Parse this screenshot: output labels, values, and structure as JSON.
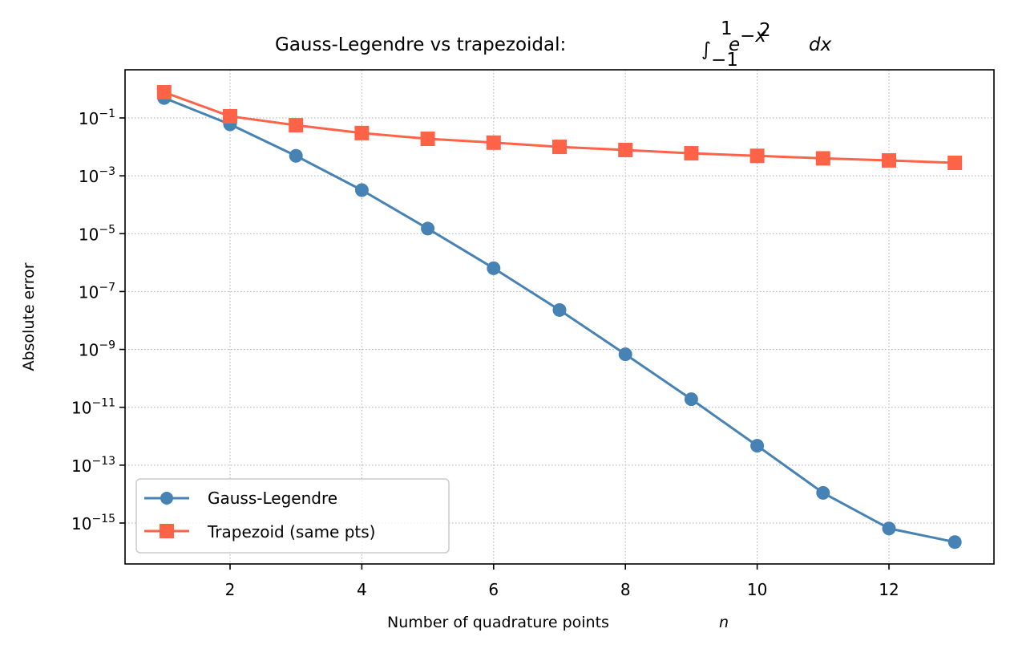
{
  "chart_data": {
    "type": "line",
    "title": "Gauss-Legendre vs trapezoidal: ∫₋₁¹ e^(−x²) dx",
    "title_parts": {
      "text": "Gauss-Legendre vs trapezoidal: ",
      "integral": "∫",
      "upper": "1",
      "lower": "−1",
      "base": "e",
      "exponent": "−x",
      "exponent_power": "2",
      "differential": "dx"
    },
    "xlabel": "Number of quadrature points",
    "xlabel_var": "n",
    "ylabel": "Absolute error",
    "yscale": "log",
    "xlim": [
      0.4,
      13.6
    ],
    "ylim_log10": [
      -16.5,
      1.65
    ],
    "x_ticks": [
      2,
      4,
      6,
      8,
      10,
      12
    ],
    "y_ticks_log10": [
      -1,
      -3,
      -5,
      -7,
      -9,
      -11,
      -13,
      -15
    ],
    "grid": true,
    "legend_position": "lower left",
    "x": [
      1,
      2,
      3,
      4,
      5,
      6,
      7,
      8,
      9,
      10,
      11,
      12,
      13
    ],
    "series": [
      {
        "name": "Gauss-Legendre",
        "color": "#4682b4",
        "marker": "circle",
        "values": [
          0.49,
          0.06,
          0.0049,
          0.00032,
          1.5e-05,
          6.4e-07,
          2.3e-08,
          6.8e-10,
          1.9e-11,
          4.7e-13,
          1.1e-14,
          6.5e-16,
          2.2e-16
        ]
      },
      {
        "name": "Trapezoid (same pts)",
        "color": "#ff6347",
        "marker": "square",
        "values": [
          0.77,
          0.114,
          0.056,
          0.03,
          0.019,
          0.014,
          0.01,
          0.0078,
          0.006,
          0.0049,
          0.004,
          0.0034,
          0.0028
        ]
      }
    ]
  }
}
